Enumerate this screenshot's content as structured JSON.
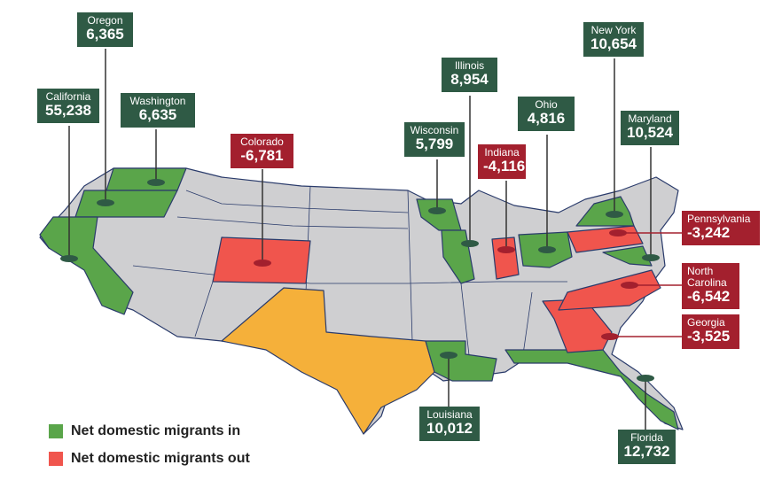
{
  "colors": {
    "in": "#5aa54a",
    "out": "#f0554d",
    "neutral": "#cfcfd1",
    "texas": "#f5b03a",
    "box_in": "#2f5a45",
    "box_out": "#a3202e"
  },
  "states": {
    "oregon": {
      "name": "Oregon",
      "value": "6,365"
    },
    "california": {
      "name": "California",
      "value": "55,238"
    },
    "washington": {
      "name": "Washington",
      "value": "6,635"
    },
    "colorado": {
      "name": "Colorado",
      "value": "-6,781"
    },
    "wisconsin": {
      "name": "Wisconsin",
      "value": "5,799"
    },
    "illinois": {
      "name": "Illinois",
      "value": "8,954"
    },
    "indiana": {
      "name": "Indiana",
      "value": "-4,116"
    },
    "ohio": {
      "name": "Ohio",
      "value": "4,816"
    },
    "new_york": {
      "name": "New York",
      "value": "10,654"
    },
    "maryland": {
      "name": "Maryland",
      "value": "10,524"
    },
    "pennsylvania": {
      "name": "Pennsylvania",
      "value": "-3,242"
    },
    "north_carolina": {
      "name": "North Carolina",
      "value": "-6,542"
    },
    "georgia": {
      "name": "Georgia",
      "value": "-3,525"
    },
    "louisiana": {
      "name": "Louisiana",
      "value": "10,012"
    },
    "florida": {
      "name": "Florida",
      "value": "12,732"
    }
  },
  "legend": {
    "in": "Net domestic migrants in",
    "out": "Net domestic migrants out"
  }
}
